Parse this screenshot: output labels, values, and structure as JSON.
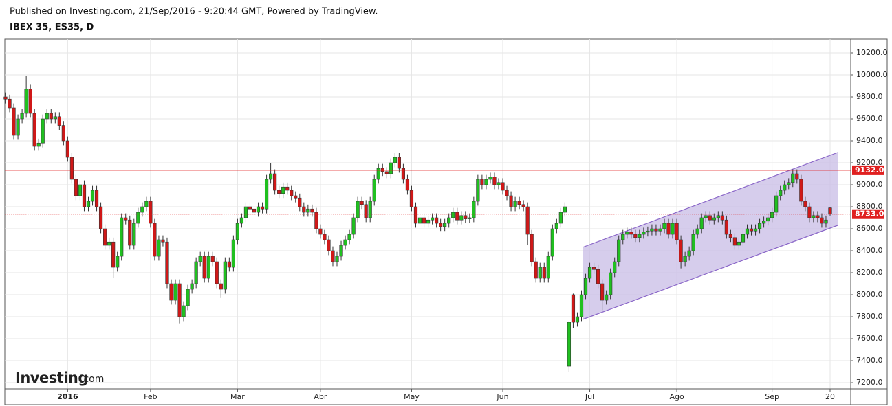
{
  "header": {
    "published": "Published on Investing.com, 21/Sep/2016 - 9:20:44 GMT, Powered by TradingView.",
    "symbol": "IBEX 35, ES35, D"
  },
  "logo": {
    "brand": "Investing",
    "suffix": ".com"
  },
  "chart_data": {
    "type": "candlestick",
    "categories": [
      null,
      null,
      null,
      null,
      null,
      null,
      null,
      null,
      null,
      null,
      null,
      null,
      null,
      null,
      null,
      "2016",
      null,
      null,
      null,
      null,
      null,
      null,
      null,
      null,
      null,
      null,
      null,
      null,
      null,
      null,
      null,
      null,
      null,
      null,
      null,
      "Feb",
      null,
      null,
      null,
      null,
      null,
      null,
      null,
      null,
      null,
      null,
      null,
      null,
      null,
      null,
      null,
      null,
      null,
      null,
      null,
      null,
      "Mar",
      null,
      null,
      null,
      null,
      null,
      null,
      null,
      null,
      null,
      null,
      null,
      null,
      null,
      null,
      null,
      null,
      null,
      null,
      null,
      "Abr",
      null,
      null,
      null,
      null,
      null,
      null,
      null,
      null,
      null,
      null,
      null,
      null,
      null,
      null,
      null,
      null,
      null,
      null,
      null,
      null,
      null,
      "May",
      null,
      null,
      null,
      null,
      null,
      null,
      null,
      null,
      null,
      null,
      null,
      null,
      null,
      null,
      null,
      null,
      null,
      null,
      null,
      null,
      null,
      "Jun",
      null,
      null,
      null,
      null,
      null,
      null,
      null,
      null,
      null,
      null,
      null,
      null,
      null,
      null,
      null,
      null,
      null,
      null,
      null,
      null,
      "Jul",
      null,
      null,
      null,
      null,
      null,
      null,
      null,
      null,
      null,
      null,
      null,
      null,
      null,
      null,
      null,
      null,
      null,
      null,
      null,
      null,
      "Ago",
      null,
      null,
      null,
      null,
      null,
      null,
      null,
      null,
      null,
      null,
      null,
      null,
      null,
      null,
      null,
      null,
      null,
      null,
      null,
      null,
      null,
      null,
      "Sep",
      null,
      null,
      null,
      null,
      null,
      null,
      null,
      null,
      null,
      null,
      null,
      null,
      null,
      "20"
    ],
    "open": [
      9800,
      9780,
      9700,
      9450,
      9600,
      9650,
      9870,
      9650,
      9350,
      9380,
      9600,
      9650,
      9600,
      9620,
      9540,
      9400,
      9250,
      9050,
      8900,
      9000,
      8800,
      8850,
      8950,
      8800,
      8600,
      8450,
      8480,
      8250,
      8350,
      8700,
      8680,
      8450,
      8650,
      8750,
      8800,
      8850,
      8650,
      8350,
      8500,
      8480,
      8100,
      7950,
      8100,
      7800,
      7900,
      8050,
      8100,
      8300,
      8350,
      8150,
      8350,
      8300,
      8100,
      8050,
      8300,
      8250,
      8500,
      8650,
      8700,
      8800,
      8780,
      8750,
      8800,
      8780,
      9050,
      9100,
      8950,
      8920,
      8980,
      8950,
      8900,
      8880,
      8800,
      8750,
      8780,
      8750,
      8600,
      8550,
      8500,
      8400,
      8300,
      8350,
      8450,
      8500,
      8550,
      8700,
      8850,
      8820,
      8700,
      8850,
      9050,
      9150,
      9120,
      9100,
      9200,
      9250,
      9150,
      9050,
      8950,
      8800,
      8650,
      8700,
      8650,
      8680,
      8700,
      8650,
      8620,
      8650,
      8700,
      8750,
      8680,
      8720,
      8690,
      8700,
      8850,
      9050,
      9000,
      9050,
      9070,
      9000,
      9020,
      8950,
      8900,
      8800,
      8850,
      8820,
      8800,
      8550,
      8300,
      8150,
      8250,
      8150,
      8350,
      8600,
      8650,
      8750,
      7350,
      8000,
      7750,
      7800,
      8000,
      8150,
      8250,
      8230,
      8100,
      7950,
      8000,
      8200,
      8300,
      8500,
      8550,
      8570,
      8550,
      8520,
      8550,
      8570,
      8580,
      8600,
      8580,
      8600,
      8650,
      8550,
      8650,
      8500,
      8300,
      8350,
      8400,
      8550,
      8600,
      8700,
      8720,
      8680,
      8700,
      8720,
      8680,
      8550,
      8520,
      8450,
      8480,
      8550,
      8600,
      8580,
      8600,
      8650,
      8670,
      8700,
      8750,
      8900,
      8950,
      9000,
      9020,
      9100,
      9050,
      8850,
      8800,
      8700,
      8720,
      8700,
      8650,
      8790
    ],
    "high": [
      9840,
      9820,
      9740,
      9640,
      9690,
      9990,
      9910,
      9690,
      9420,
      9640,
      9690,
      9690,
      9660,
      9660,
      9580,
      9440,
      9290,
      9090,
      9040,
      9040,
      8890,
      8990,
      8990,
      8840,
      8640,
      8520,
      8520,
      8390,
      8740,
      8740,
      8720,
      8690,
      8790,
      8840,
      8890,
      8890,
      8690,
      8540,
      8540,
      8520,
      8140,
      8140,
      8140,
      7940,
      8090,
      8140,
      8340,
      8390,
      8390,
      8390,
      8390,
      8340,
      8140,
      8340,
      8340,
      8540,
      8690,
      8740,
      8840,
      8840,
      8820,
      8840,
      8840,
      9090,
      9200,
      9140,
      8990,
      9020,
      9020,
      8990,
      8940,
      8920,
      8840,
      8820,
      8820,
      8790,
      8640,
      8590,
      8540,
      8440,
      8390,
      8490,
      8540,
      8590,
      8740,
      8890,
      8890,
      8860,
      8890,
      9090,
      9190,
      9190,
      9160,
      9240,
      9290,
      9290,
      9190,
      9090,
      8990,
      8840,
      8740,
      8740,
      8720,
      8740,
      8740,
      8690,
      8690,
      8740,
      8790,
      8790,
      8760,
      8760,
      8740,
      8890,
      9090,
      9090,
      9090,
      9110,
      9110,
      9060,
      9060,
      8990,
      8940,
      8890,
      8890,
      8860,
      8840,
      8590,
      8340,
      8290,
      8290,
      8390,
      8640,
      8690,
      8790,
      8840,
      7760,
      8010,
      7840,
      8040,
      8190,
      8290,
      8290,
      8270,
      8140,
      8040,
      8240,
      8340,
      8540,
      8590,
      8610,
      8610,
      8590,
      8590,
      8610,
      8620,
      8640,
      8640,
      8640,
      8690,
      8690,
      8690,
      8690,
      8540,
      8390,
      8440,
      8590,
      8640,
      8740,
      8760,
      8760,
      8740,
      8760,
      8760,
      8720,
      8590,
      8560,
      8520,
      8590,
      8640,
      8640,
      8640,
      8690,
      8710,
      8740,
      8790,
      8940,
      8990,
      9040,
      9060,
      9140,
      9140,
      9090,
      8890,
      8840,
      8760,
      8760,
      8740,
      8720,
      8800
    ],
    "low": [
      9740,
      9660,
      9410,
      9410,
      9560,
      9610,
      9610,
      9310,
      9310,
      9340,
      9560,
      9560,
      9560,
      9500,
      9360,
      9210,
      9010,
      8860,
      8860,
      8760,
      8760,
      8810,
      8760,
      8560,
      8410,
      8410,
      8150,
      8210,
      8310,
      8640,
      8410,
      8410,
      8610,
      8710,
      8760,
      8610,
      8310,
      8310,
      8440,
      8060,
      7910,
      7910,
      7740,
      7760,
      7860,
      8010,
      8060,
      8260,
      8110,
      8110,
      8260,
      8060,
      7970,
      8010,
      8210,
      8210,
      8460,
      8610,
      8660,
      8740,
      8710,
      8710,
      8740,
      8740,
      9010,
      8910,
      8880,
      8880,
      8910,
      8860,
      8840,
      8760,
      8710,
      8710,
      8710,
      8560,
      8510,
      8460,
      8360,
      8260,
      8260,
      8310,
      8410,
      8460,
      8510,
      8660,
      8780,
      8660,
      8660,
      8810,
      9010,
      9080,
      9060,
      9060,
      9160,
      9110,
      9010,
      8910,
      8760,
      8610,
      8610,
      8610,
      8610,
      8640,
      8610,
      8580,
      8580,
      8610,
      8660,
      8640,
      8640,
      8650,
      8650,
      8660,
      8810,
      8960,
      8960,
      9010,
      8960,
      8960,
      8910,
      8860,
      8760,
      8760,
      8780,
      8760,
      8450,
      8260,
      8110,
      8110,
      8110,
      8110,
      8310,
      8560,
      8610,
      8710,
      7300,
      7700,
      7710,
      7760,
      7960,
      8110,
      8190,
      8060,
      7860,
      7910,
      7960,
      8160,
      8260,
      8460,
      8510,
      8510,
      8480,
      8480,
      8510,
      8530,
      8540,
      8540,
      8540,
      8560,
      8510,
      8510,
      8460,
      8240,
      8260,
      8310,
      8360,
      8510,
      8560,
      8660,
      8640,
      8640,
      8660,
      8640,
      8510,
      8480,
      8410,
      8410,
      8440,
      8510,
      8540,
      8540,
      8560,
      8610,
      8630,
      8660,
      8710,
      8860,
      8910,
      8960,
      8980,
      9010,
      8810,
      8760,
      8660,
      8660,
      8660,
      8610,
      8610,
      8720
    ],
    "close": [
      9780,
      9700,
      9450,
      9600,
      9650,
      9870,
      9650,
      9350,
      9380,
      9600,
      9650,
      9600,
      9620,
      9540,
      9400,
      9250,
      9050,
      8900,
      9000,
      8800,
      8850,
      8950,
      8800,
      8600,
      8450,
      8480,
      8250,
      8350,
      8700,
      8680,
      8450,
      8650,
      8750,
      8800,
      8850,
      8650,
      8350,
      8500,
      8480,
      8100,
      7950,
      8100,
      7800,
      7900,
      8050,
      8100,
      8300,
      8350,
      8150,
      8350,
      8300,
      8100,
      8050,
      8300,
      8250,
      8500,
      8650,
      8700,
      8800,
      8780,
      8750,
      8800,
      8780,
      9050,
      9100,
      8950,
      8920,
      8980,
      8950,
      8900,
      8880,
      8800,
      8750,
      8780,
      8750,
      8600,
      8550,
      8500,
      8400,
      8300,
      8350,
      8450,
      8500,
      8550,
      8700,
      8850,
      8820,
      8700,
      8850,
      9050,
      9150,
      9120,
      9100,
      9200,
      9250,
      9150,
      9050,
      8950,
      8800,
      8650,
      8700,
      8650,
      8680,
      8700,
      8650,
      8620,
      8650,
      8700,
      8750,
      8680,
      8720,
      8690,
      8700,
      8850,
      9050,
      9000,
      9050,
      9070,
      9000,
      9020,
      8950,
      8900,
      8800,
      8850,
      8820,
      8800,
      8550,
      8300,
      8150,
      8250,
      8150,
      8350,
      8600,
      8650,
      8750,
      8800,
      7750,
      7750,
      7800,
      8000,
      8150,
      8250,
      8230,
      8100,
      7950,
      8000,
      8200,
      8300,
      8500,
      8550,
      8570,
      8550,
      8520,
      8550,
      8570,
      8580,
      8600,
      8580,
      8600,
      8650,
      8550,
      8650,
      8500,
      8300,
      8350,
      8400,
      8550,
      8600,
      8700,
      8720,
      8680,
      8700,
      8720,
      8680,
      8550,
      8520,
      8450,
      8480,
      8550,
      8600,
      8580,
      8600,
      8650,
      8670,
      8700,
      8750,
      8900,
      8950,
      9000,
      9020,
      9100,
      9050,
      8850,
      8800,
      8700,
      8720,
      8700,
      8650,
      8680,
      8733
    ],
    "up_color": "#20c020",
    "down_color": "#d01818",
    "ylim": [
      7144,
      10325
    ],
    "yticks": [
      {
        "value": 7200,
        "label": "7200.0"
      },
      {
        "value": 7400,
        "label": "7400.0"
      },
      {
        "value": 7600,
        "label": "7600.0"
      },
      {
        "value": 7800,
        "label": "7800.0"
      },
      {
        "value": 8000,
        "label": "8000.0"
      },
      {
        "value": 8200,
        "label": "8200.0"
      },
      {
        "value": 8400,
        "label": "8400.0"
      },
      {
        "value": 8600,
        "label": "8600.0"
      },
      {
        "value": 8800,
        "label": "8800.0"
      },
      {
        "value": 9000,
        "label": "9000.0"
      },
      {
        "value": 9200,
        "label": "9200.0"
      },
      {
        "value": 9400,
        "label": "9400.0"
      },
      {
        "value": 9600,
        "label": "9600.0"
      },
      {
        "value": 9800,
        "label": "9800.0"
      },
      {
        "value": 10000,
        "label": "10000.0"
      },
      {
        "value": 10200,
        "label": "10200.0"
      }
    ],
    "grid": true,
    "price_lines": [
      {
        "value": 9132,
        "label": "9132.0",
        "style": "solid",
        "color": "#e02020"
      },
      {
        "value": 8733,
        "label": "8733.0",
        "style": "dotted",
        "color": "#e02020"
      }
    ]
  }
}
